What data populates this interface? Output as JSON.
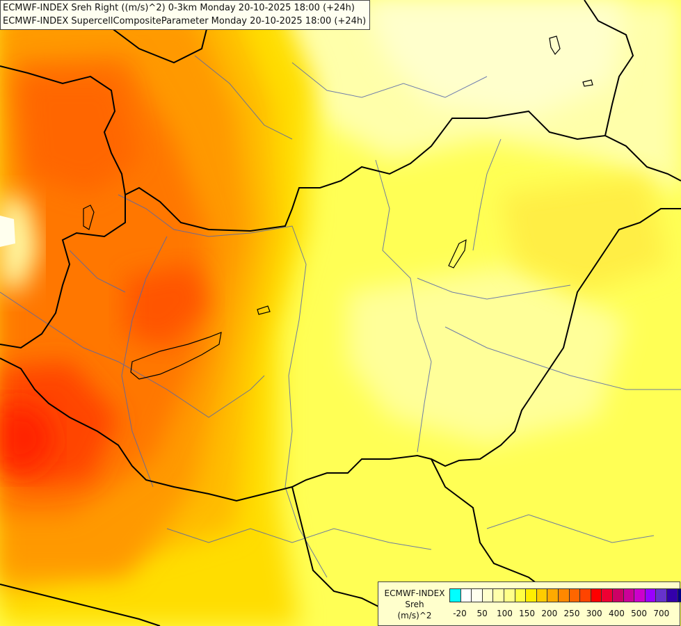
{
  "map": {
    "title_line1": "ECMWF-INDEX Sreh Right ((m/s)^2) 0-3km Monday 20-10-2025 18:00 (+24h)",
    "title_line2": "ECMWF-INDEX SupercellCompositeParameter Monday 20-10-2025 18:00 (+24h)"
  },
  "legend": {
    "line1": "ECMWF-INDEX",
    "line2": "Sreh",
    "line3": "(m/s)^2",
    "colors": [
      "#00ffff",
      "#ffffff",
      "#ffffee",
      "#ffffcc",
      "#ffffaa",
      "#ffff88",
      "#ffff44",
      "#ffee00",
      "#ffcc00",
      "#ffaa00",
      "#ff8800",
      "#ff6600",
      "#ff4400",
      "#ff0000",
      "#ee0033",
      "#cc0066",
      "#cc0099",
      "#cc00cc",
      "#9900ff",
      "#6633cc",
      "#3300aa",
      "#000088"
    ],
    "tick_labels": [
      "-20",
      "50",
      "100",
      "150",
      "200",
      "250",
      "300",
      "400",
      "500",
      "700"
    ]
  }
}
